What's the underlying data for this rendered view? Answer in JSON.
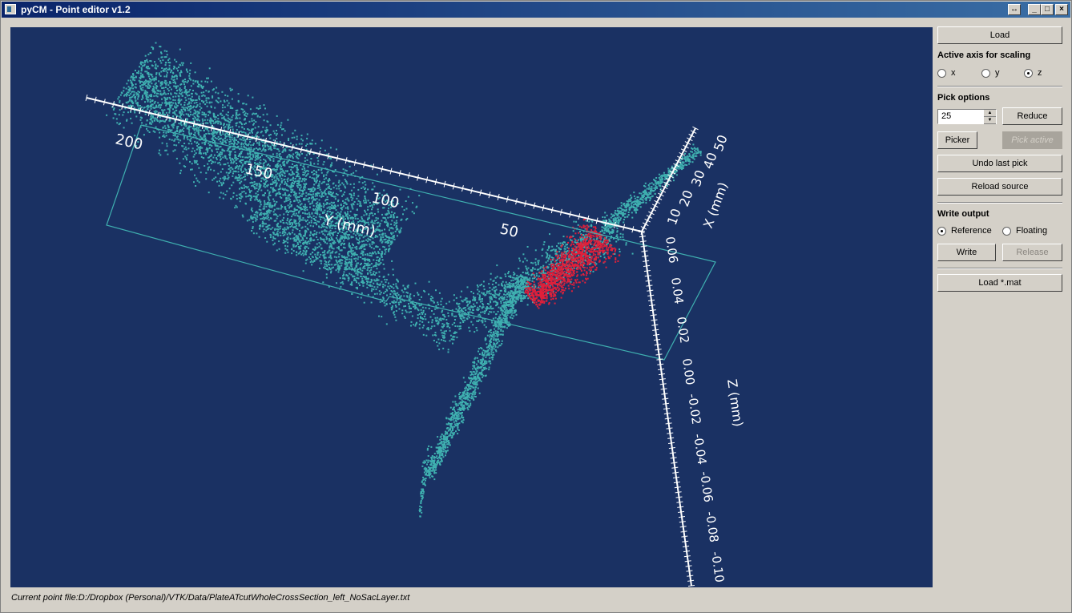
{
  "window": {
    "title": "pyCM - Point editor v1.2"
  },
  "title_buttons": {
    "resize": "↔",
    "minimize": "_",
    "maximize": "□",
    "close": "×"
  },
  "panel": {
    "load_label": "Load",
    "scaling_heading": "Active axis for scaling",
    "axis_options": [
      "x",
      "y",
      "z"
    ],
    "axis_selected": "z",
    "pick_heading": "Pick options",
    "pick_value": "25",
    "reduce_label": "Reduce",
    "picker_label": "Picker",
    "pick_active_label": "Pick active",
    "undo_label": "Undo last pick",
    "reload_label": "Reload source",
    "write_heading": "Write output",
    "reference_label": "Reference",
    "floating_label": "Floating",
    "write_selected": "Reference",
    "write_label": "Write",
    "release_label": "Release",
    "load_mat_label": "Load *.mat"
  },
  "viewport": {
    "background": "#1a3163",
    "point_color": "#3fb0b0",
    "picked_color": "#e0203a",
    "y_axis": {
      "title": "Y (mm)",
      "ticks": [
        "200",
        "150",
        "100",
        "50"
      ]
    },
    "x_axis": {
      "title": "X (mm)",
      "ticks": [
        "10",
        "20",
        "30",
        "40",
        "50"
      ]
    },
    "z_axis": {
      "title": "Z (mm)",
      "ticks": [
        "0.06",
        "0.04",
        "0.02",
        "0.00",
        "-0.02",
        "-0.04",
        "-0.06",
        "-0.08",
        "-0.10"
      ]
    }
  },
  "status": {
    "text": "Current point file:D:/Dropbox (Personal)/VTK/Data/PlateATcutWholeCrossSection_left_NoSacLayer.txt"
  }
}
